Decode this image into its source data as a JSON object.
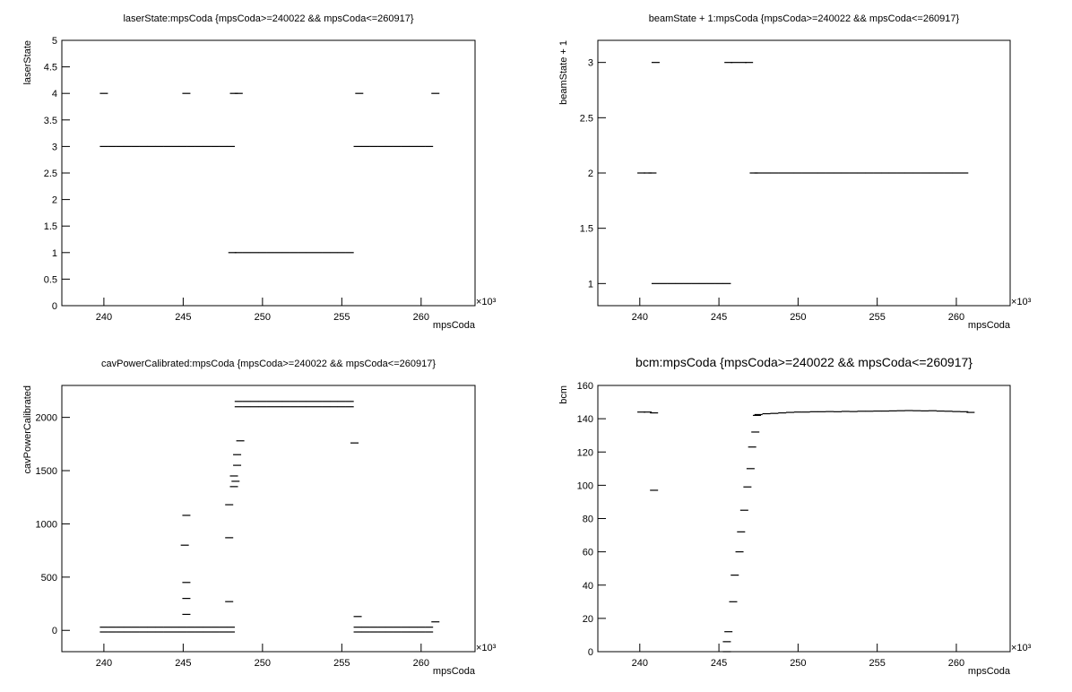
{
  "chart_data": [
    {
      "type": "scatter",
      "title": "laserState:mpsCoda {mpsCoda>=240022 && mpsCoda<=260917}",
      "xlabel": "mpsCoda",
      "ylabel": "laserState",
      "x_exponent": "×10³",
      "color": "#000000",
      "x": [
        240,
        240.5,
        241,
        241.5,
        242,
        242.5,
        243,
        243.5,
        244,
        244.5,
        245,
        245.5,
        246,
        246.5,
        247,
        247.5,
        248,
        248.1,
        248.5,
        249,
        249.5,
        250,
        250.5,
        251,
        251.5,
        252,
        252.5,
        253,
        253.5,
        254,
        254.5,
        255,
        255.5,
        256,
        256.5,
        257,
        257.5,
        258,
        258.5,
        259,
        259.5,
        260,
        260.5,
        240,
        245.2,
        248.2,
        248.5,
        256.1,
        260.9
      ],
      "y": [
        3,
        3,
        3,
        3,
        3,
        3,
        3,
        3,
        3,
        3,
        3,
        3,
        3,
        3,
        3,
        3,
        3,
        1,
        1,
        1,
        1,
        1,
        1,
        1,
        1,
        1,
        1,
        1,
        1,
        1,
        1,
        1,
        1,
        3,
        3,
        3,
        3,
        3,
        3,
        3,
        3,
        3,
        3,
        4,
        4,
        4,
        4,
        4,
        4
      ],
      "xlim": [
        237.35,
        263.4
      ],
      "xticks": [
        240,
        245,
        250,
        255,
        260
      ],
      "ylim": [
        0,
        5
      ],
      "yticks": [
        0,
        0.5,
        1,
        1.5,
        2,
        2.5,
        3,
        3.5,
        4,
        4.5,
        5
      ]
    },
    {
      "type": "scatter",
      "title": "beamState + 1:mpsCoda {mpsCoda>=240022 && mpsCoda<=260917}",
      "xlabel": "mpsCoda",
      "ylabel": "beamState + 1",
      "x_exponent": "×10³",
      "color": "#000000",
      "x": [
        240.1,
        240.5,
        240.8,
        241,
        241,
        241.5,
        242,
        242.5,
        243,
        243.5,
        244,
        244.5,
        245,
        245.5,
        245.6,
        246,
        246.5,
        246.9,
        247.2,
        247.5,
        248,
        248.5,
        249,
        249.5,
        250,
        250.5,
        251,
        251.5,
        252,
        252.5,
        253,
        253.5,
        254,
        254.5,
        255,
        255.5,
        256,
        256.5,
        257,
        257.5,
        258,
        258.5,
        259,
        259.5,
        260,
        260.5
      ],
      "y": [
        2,
        2,
        2,
        3,
        1,
        1,
        1,
        1,
        1,
        1,
        1,
        1,
        1,
        1,
        3,
        3,
        3,
        3,
        2,
        2,
        2,
        2,
        2,
        2,
        2,
        2,
        2,
        2,
        2,
        2,
        2,
        2,
        2,
        2,
        2,
        2,
        2,
        2,
        2,
        2,
        2,
        2,
        2,
        2,
        2,
        2
      ],
      "xlim": [
        237.35,
        263.4
      ],
      "xticks": [
        240,
        245,
        250,
        255,
        260
      ],
      "ylim": [
        0.8,
        3.2
      ],
      "yticks": [
        1,
        1.5,
        2,
        2.5,
        3
      ]
    },
    {
      "type": "scatter",
      "title": "cavPowerCalibrated:mpsCoda {mpsCoda>=240022 && mpsCoda<=260917}",
      "xlabel": "mpsCoda",
      "ylabel": "cavPowerCalibrated",
      "x_exponent": "×10³",
      "color": "#000000",
      "x": [
        240,
        240.5,
        241,
        241.5,
        242,
        242.5,
        243,
        243.5,
        244,
        244.5,
        245,
        245.5,
        246,
        246.5,
        247,
        247.5,
        248,
        240,
        240.5,
        241,
        241.5,
        242,
        242.5,
        243,
        243.5,
        244,
        244.5,
        245,
        245.5,
        246,
        246.5,
        247,
        247.5,
        248,
        256,
        256.5,
        257,
        257.5,
        258,
        258.5,
        259,
        259.5,
        260,
        260.5,
        256,
        256.5,
        257,
        257.5,
        258,
        258.5,
        259,
        259.5,
        260,
        260.5,
        248.5,
        249,
        249.5,
        250,
        250.5,
        251,
        251.5,
        252,
        252.5,
        253,
        253.5,
        254,
        254.5,
        255,
        255.5,
        248.5,
        249,
        249.5,
        250,
        250.5,
        251,
        251.5,
        252,
        252.5,
        253,
        253.5,
        254,
        254.5,
        255,
        255.5,
        245.2,
        245.2,
        245.2,
        245.1,
        245.2,
        247.9,
        247.9,
        247.9,
        248.2,
        248.2,
        248.4,
        248.4,
        248.6,
        248.3,
        255.8,
        256,
        260.9
      ],
      "y": [
        30,
        30,
        30,
        30,
        30,
        30,
        30,
        30,
        30,
        30,
        30,
        30,
        30,
        30,
        30,
        30,
        30,
        -15,
        -15,
        -15,
        -15,
        -15,
        -15,
        -15,
        -15,
        -15,
        -15,
        -15,
        -15,
        -15,
        -15,
        -15,
        -15,
        -15,
        30,
        30,
        30,
        30,
        30,
        30,
        30,
        30,
        30,
        30,
        -15,
        -15,
        -15,
        -15,
        -15,
        -15,
        -15,
        -15,
        -15,
        -15,
        2150,
        2150,
        2150,
        2150,
        2150,
        2150,
        2150,
        2150,
        2150,
        2150,
        2150,
        2150,
        2150,
        2150,
        2150,
        2100,
        2100,
        2100,
        2100,
        2100,
        2100,
        2100,
        2100,
        2100,
        2100,
        2100,
        2100,
        2100,
        2100,
        2100,
        150,
        300,
        450,
        800,
        1080,
        1180,
        870,
        270,
        1350,
        1450,
        1550,
        1650,
        1780,
        1400,
        1760,
        130,
        80
      ],
      "xlim": [
        237.35,
        263.4
      ],
      "xticks": [
        240,
        245,
        250,
        255,
        260
      ],
      "ylim": [
        -200,
        2300
      ],
      "yticks": [
        0,
        500,
        1000,
        1500,
        2000
      ]
    },
    {
      "type": "scatter",
      "title": "bcm:mpsCoda {mpsCoda>=240022 && mpsCoda<=260917}",
      "xlabel": "mpsCoda",
      "ylabel": "bcm",
      "x_exponent": "×10³",
      "color": "#000000",
      "x": [
        240.1,
        240.5,
        240.9,
        240.9,
        245.5,
        245.5,
        245.6,
        245.9,
        246,
        246.3,
        246.4,
        246.6,
        246.8,
        247,
        247.1,
        247.3,
        247.4,
        247.5,
        248,
        248.5,
        249,
        249.5,
        250,
        250.5,
        251,
        251.5,
        252,
        252.5,
        253,
        253.5,
        254,
        254.5,
        255,
        255.5,
        256,
        256.5,
        257,
        257.5,
        258,
        258.5,
        259,
        259.5,
        260,
        260.5,
        260.9
      ],
      "y": [
        144,
        144,
        143.5,
        97,
        0,
        6,
        12,
        30,
        46,
        60,
        72,
        85,
        99,
        110,
        123,
        132,
        142,
        142.5,
        143,
        143.2,
        143.5,
        143.8,
        144,
        144,
        144.2,
        144.2,
        144.3,
        144.2,
        144.4,
        144.3,
        144.5,
        144.5,
        144.6,
        144.6,
        144.7,
        144.8,
        144.9,
        144.8,
        144.7,
        144.8,
        144.6,
        144.5,
        144.3,
        144.2,
        143.8
      ],
      "xlim": [
        237.35,
        263.4
      ],
      "xticks": [
        240,
        245,
        250,
        255,
        260
      ],
      "ylim": [
        0,
        160
      ],
      "yticks": [
        0,
        20,
        40,
        60,
        80,
        100,
        120,
        140,
        160
      ]
    }
  ]
}
